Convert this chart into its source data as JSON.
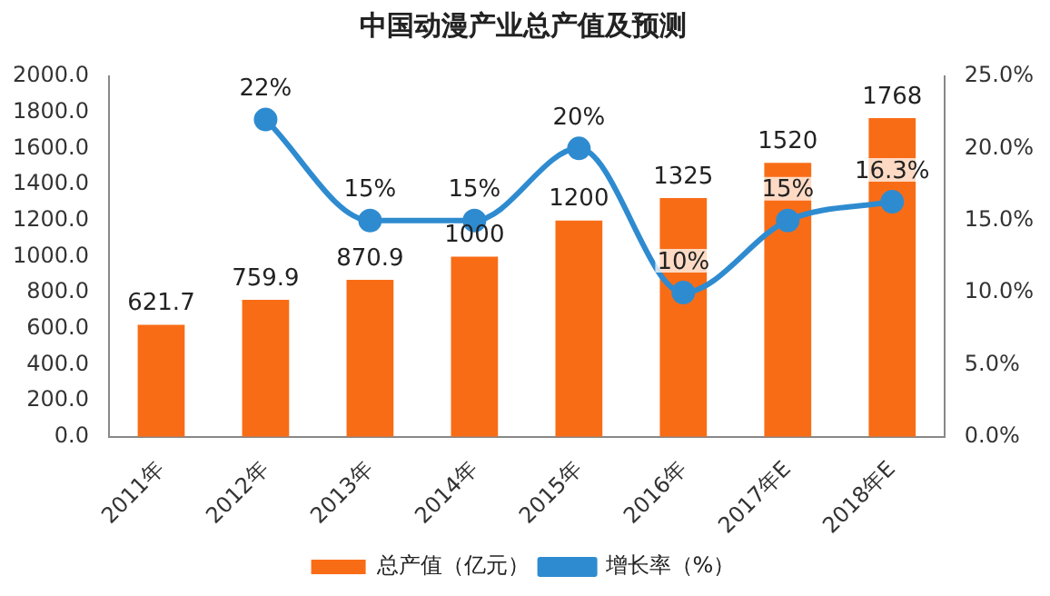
{
  "chart_data": {
    "type": "bar",
    "title": "中国动漫产业总产值及预测",
    "categories": [
      "2011年",
      "2012年",
      "2013年",
      "2014年",
      "2015年",
      "2016年",
      "2017年E",
      "2018年E"
    ],
    "series": [
      {
        "name": "总产值（亿元）",
        "color": "#f96c16",
        "values": [
          621.7,
          759.9,
          870.9,
          1000,
          1200,
          1325,
          1520,
          1768
        ],
        "value_labels": [
          "621.7",
          "759.9",
          "870.9",
          "1000",
          "1200",
          "1325",
          "1520",
          "1768"
        ]
      },
      {
        "name": "增长率（%）",
        "type": "line",
        "axis": "y2",
        "color": "#2e8bd0",
        "values": [
          null,
          22,
          15,
          15,
          20,
          10,
          15,
          16.3
        ],
        "value_labels": [
          null,
          "22%",
          "15%",
          "15%",
          "20%",
          "10%",
          "15%",
          "16.3%"
        ]
      }
    ],
    "ylim": [
      0,
      2000
    ],
    "yticks": [
      {
        "value": 0,
        "label": "0.0"
      },
      {
        "value": 200,
        "label": "200.0"
      },
      {
        "value": 400,
        "label": "400.0"
      },
      {
        "value": 600,
        "label": "600.0"
      },
      {
        "value": 800,
        "label": "800.0"
      },
      {
        "value": 1000,
        "label": "1000.0"
      },
      {
        "value": 1200,
        "label": "1200.0"
      },
      {
        "value": 1400,
        "label": "1400.0"
      },
      {
        "value": 1600,
        "label": "1600.0"
      },
      {
        "value": 1800,
        "label": "1800.0"
      },
      {
        "value": 2000,
        "label": "2000.0"
      }
    ],
    "y2lim": [
      0,
      25
    ],
    "y2ticks": [
      {
        "value": 0,
        "label": "0.0%"
      },
      {
        "value": 5,
        "label": "5.0%"
      },
      {
        "value": 10,
        "label": "10.0%"
      },
      {
        "value": 15,
        "label": "15.0%"
      },
      {
        "value": 20,
        "label": "20.0%"
      },
      {
        "value": 25,
        "label": "25.0%"
      }
    ],
    "legend": "bottom",
    "marker": "circle",
    "grid": false
  }
}
